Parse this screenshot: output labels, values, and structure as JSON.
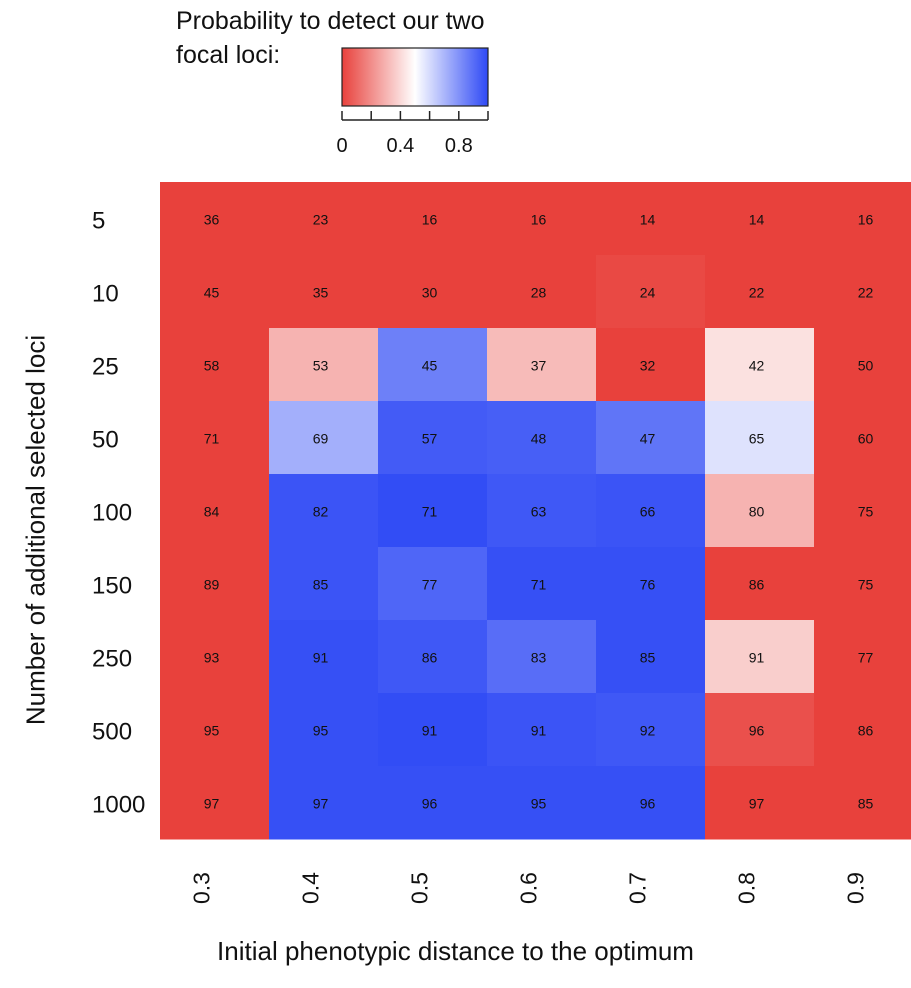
{
  "chart_data": {
    "type": "heatmap",
    "xlabel": "Initial phenotypic distance to the optimum",
    "ylabel": "Number of additional selected loci",
    "x_categories": [
      "0.3",
      "0.4",
      "0.5",
      "0.6",
      "0.7",
      "0.8",
      "0.9"
    ],
    "y_categories": [
      "5",
      "10",
      "25",
      "50",
      "100",
      "150",
      "250",
      "500",
      "1000"
    ],
    "cell_labels": [
      [
        36,
        23,
        16,
        16,
        14,
        14,
        16
      ],
      [
        45,
        35,
        30,
        28,
        24,
        22,
        22
      ],
      [
        58,
        53,
        45,
        37,
        32,
        42,
        50
      ],
      [
        71,
        69,
        57,
        48,
        47,
        65,
        60
      ],
      [
        84,
        82,
        71,
        63,
        66,
        80,
        75
      ],
      [
        89,
        85,
        77,
        71,
        76,
        86,
        75
      ],
      [
        93,
        91,
        86,
        83,
        85,
        91,
        77
      ],
      [
        95,
        95,
        91,
        91,
        92,
        96,
        86
      ],
      [
        97,
        97,
        96,
        95,
        96,
        97,
        85
      ]
    ],
    "probability": [
      [
        0.0,
        0.0,
        0.0,
        0.0,
        0.0,
        0.0,
        0.0
      ],
      [
        0.0,
        0.0,
        0.0,
        0.0,
        0.02,
        0.0,
        0.0
      ],
      [
        0.0,
        0.3,
        0.85,
        0.32,
        0.0,
        0.42,
        0.0
      ],
      [
        0.0,
        0.72,
        0.95,
        0.94,
        0.88,
        0.58,
        0.0
      ],
      [
        0.0,
        0.97,
        0.99,
        0.96,
        0.97,
        0.3,
        0.0
      ],
      [
        0.0,
        0.97,
        0.92,
        0.98,
        0.98,
        0.0,
        0.0
      ],
      [
        0.0,
        0.98,
        0.96,
        0.9,
        0.98,
        0.37,
        0.0
      ],
      [
        0.0,
        0.98,
        0.99,
        0.97,
        0.96,
        0.04,
        0.0
      ],
      [
        0.0,
        0.98,
        0.98,
        0.98,
        0.98,
        0.0,
        0.0
      ]
    ],
    "legend": {
      "title_line1": "Probability to detect our two",
      "title_line2": "focal loci:",
      "range": [
        0,
        1
      ],
      "tick_labels": [
        "0",
        "0.4",
        "0.8"
      ],
      "colors": {
        "low": "#e8413c",
        "mid": "#ffffff",
        "high": "#2e49f5"
      }
    }
  }
}
